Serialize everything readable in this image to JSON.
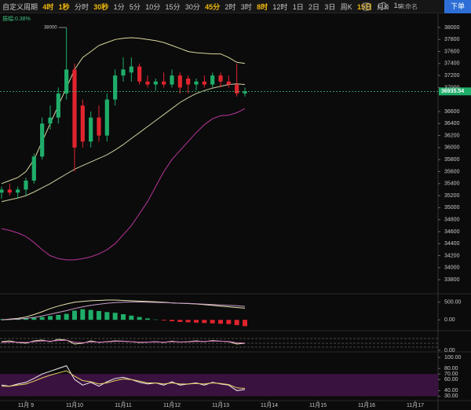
{
  "toolbar": {
    "items": [
      {
        "label": "自定义周期",
        "highlighted": false
      },
      {
        "label": "4时",
        "highlighted": true
      },
      {
        "label": "1秒",
        "highlighted": true
      },
      {
        "label": "分时",
        "highlighted": false
      },
      {
        "label": "30秒",
        "highlighted": true
      },
      {
        "label": "1分",
        "highlighted": false
      },
      {
        "label": "5分",
        "highlighted": false
      },
      {
        "label": "10分",
        "highlighted": false
      },
      {
        "label": "15分",
        "highlighted": false
      },
      {
        "label": "30分",
        "highlighted": false
      },
      {
        "label": "45分",
        "highlighted": true
      },
      {
        "label": "2时",
        "highlighted": false
      },
      {
        "label": "3时",
        "highlighted": false
      },
      {
        "label": "8时",
        "highlighted": true
      },
      {
        "label": "12时",
        "highlighted": false
      },
      {
        "label": "1日",
        "highlighted": false
      },
      {
        "label": "2日",
        "highlighted": false
      },
      {
        "label": "3日",
        "highlighted": false
      },
      {
        "label": "周K",
        "highlighted": false
      },
      {
        "label": "15日",
        "highlighted": true
      },
      {
        "label": "月K",
        "highlighted": false
      },
      {
        "label": "1s",
        "highlighted": false
      }
    ],
    "account": "未命名",
    "order_button": "下单"
  },
  "chart_data": [
    {
      "type": "candlestick",
      "annotation": "振幅:0.38%",
      "x": [
        8.5,
        8.6667,
        8.8333,
        9,
        9.1667,
        9.3333,
        9.5,
        9.6667,
        9.8333,
        10,
        10.1667,
        10.3333,
        10.5,
        10.6667,
        10.8333,
        11,
        11.1667,
        11.3333,
        11.5,
        11.6667,
        11.8333,
        12,
        12.1667,
        12.3333,
        12.5,
        12.6667,
        12.8333,
        13,
        13.1667,
        13.3333,
        13.5
      ],
      "open": [
        35250,
        35300,
        35250,
        35300,
        35450,
        35850,
        36400,
        36500,
        36900,
        37300,
        36700,
        36100,
        36500,
        36200,
        36800,
        37200,
        37250,
        37350,
        37100,
        37050,
        37100,
        37050,
        37200,
        37150,
        37050,
        37100,
        37050,
        37200,
        37100,
        37050,
        36900
      ],
      "high": [
        35350,
        35400,
        35350,
        35500,
        35900,
        36500,
        36700,
        37000,
        38000,
        37400,
        36800,
        36600,
        36700,
        36900,
        37300,
        37500,
        37500,
        37400,
        37200,
        37150,
        37250,
        37300,
        37250,
        37200,
        37150,
        37200,
        37250,
        37250,
        37200,
        37400,
        37000
      ],
      "low": [
        35150,
        35200,
        35150,
        35200,
        35400,
        35800,
        36300,
        36400,
        36800,
        35600,
        36000,
        36000,
        36100,
        36100,
        36700,
        37100,
        37100,
        37050,
        37000,
        36950,
        37000,
        37000,
        36900,
        36900,
        36950,
        37000,
        37000,
        37000,
        37000,
        36850,
        36850
      ],
      "close": [
        35300,
        35250,
        35300,
        35450,
        35850,
        36400,
        36500,
        36900,
        37300,
        36000,
        36100,
        36500,
        36200,
        36800,
        37200,
        37300,
        37350,
        37100,
        37050,
        37100,
        37050,
        37200,
        37000,
        37050,
        37100,
        37050,
        37200,
        37100,
        37050,
        36900,
        36935.54
      ],
      "up_color": "#1fad6a",
      "down_color": "#e0242e",
      "series": [
        {
          "color": "#d9d79c",
          "values": [
            35400,
            35450,
            35500,
            35600,
            35800,
            36100,
            36400,
            36700,
            37000,
            37300,
            37500,
            37600,
            37700,
            37750,
            37800,
            37820,
            37830,
            37820,
            37800,
            37780,
            37750,
            37700,
            37650,
            37600,
            37580,
            37570,
            37560,
            37560,
            37500,
            37420,
            37400
          ]
        },
        {
          "color": "#cfcfa0",
          "values": [
            35100,
            35130,
            35160,
            35200,
            35260,
            35330,
            35400,
            35480,
            35560,
            35640,
            35700,
            35760,
            35820,
            35880,
            35960,
            36050,
            36150,
            36250,
            36350,
            36450,
            36550,
            36650,
            36750,
            36830,
            36900,
            36950,
            36990,
            37020,
            37050,
            37060,
            37050
          ]
        },
        {
          "color": "#b9359b",
          "values": [
            34650,
            34620,
            34580,
            34520,
            34420,
            34300,
            34200,
            34150,
            34130,
            34130,
            34150,
            34180,
            34230,
            34300,
            34400,
            34550,
            34700,
            34900,
            35100,
            35350,
            35600,
            35800,
            35950,
            36100,
            36250,
            36380,
            36480,
            36530,
            36540,
            36580,
            36650
          ]
        }
      ],
      "xlim": [
        8.468,
        17.5
      ],
      "xticks": [
        {
          "value": 9,
          "label": "11月 9"
        },
        {
          "value": 10,
          "label": "11月10"
        },
        {
          "value": 11,
          "label": "11月11"
        },
        {
          "value": 12,
          "label": "11月12"
        },
        {
          "value": 13,
          "label": "11月13"
        },
        {
          "value": 14,
          "label": "11月14"
        },
        {
          "value": 15,
          "label": "11月15"
        },
        {
          "value": 16,
          "label": "11月16"
        },
        {
          "value": 17,
          "label": "11月17"
        }
      ],
      "ylim": [
        33592,
        38222
      ],
      "yticks": [
        33800,
        34000,
        34200,
        34400,
        34600,
        34800,
        35000,
        35200,
        35400,
        35600,
        35800,
        36000,
        36200,
        36400,
        36600,
        37000,
        37200,
        37400,
        37600,
        37800,
        38000
      ]
    },
    {
      "type": "macd",
      "up_color": "#1fad6a",
      "down_color": "#e0242e",
      "values": [
        20,
        25,
        30,
        40,
        60,
        80,
        110,
        140,
        170,
        260,
        300,
        280,
        250,
        220,
        200,
        160,
        120,
        80,
        40,
        10,
        -20,
        -40,
        -60,
        -70,
        -80,
        -90,
        -100,
        -110,
        -120,
        -150,
        -180
      ],
      "series": [
        {
          "color": "#e8e3b0",
          "values": [
            0,
            20,
            40,
            80,
            150,
            230,
            320,
            390,
            450,
            500,
            520,
            540,
            550,
            560,
            560,
            550,
            540,
            530,
            520,
            510,
            500,
            480,
            470,
            460,
            450,
            430,
            410,
            390,
            370,
            350,
            330
          ]
        },
        {
          "color": "#c9a0c9",
          "values": [
            0,
            10,
            20,
            40,
            70,
            110,
            160,
            210,
            260,
            320,
            370,
            410,
            440,
            470,
            490,
            500,
            505,
            505,
            500,
            495,
            490,
            480,
            470,
            465,
            455,
            445,
            435,
            420,
            410,
            400,
            380
          ]
        }
      ],
      "ylim": [
        -240,
        650
      ],
      "yticks": [
        {
          "value": 0,
          "label": "0.00"
        },
        {
          "value": 500,
          "label": "500.00"
        }
      ]
    },
    {
      "type": "line",
      "series": [
        {
          "color": "#e8e3b0",
          "values": [
            55,
            60,
            50,
            45,
            60,
            65,
            55,
            70,
            65,
            40,
            45,
            60,
            50,
            55,
            60,
            58,
            55,
            50,
            52,
            55,
            50,
            58,
            52,
            55,
            60,
            55,
            62,
            58,
            55,
            40,
            45
          ]
        },
        {
          "color": "#d070c0",
          "values": [
            50,
            52,
            52,
            50,
            55,
            60,
            58,
            62,
            64,
            52,
            48,
            54,
            52,
            54,
            57,
            57,
            55,
            52,
            52,
            54,
            52,
            55,
            53,
            54,
            57,
            56,
            59,
            58,
            56,
            48,
            46
          ]
        }
      ],
      "ylim": [
        0,
        100
      ],
      "yticks": [
        {
          "value": 0,
          "label": "0.00"
        }
      ]
    },
    {
      "type": "line",
      "band": [
        30,
        70
      ],
      "band_color": "#3a1240",
      "series": [
        {
          "color": "#f0f0f0",
          "values": [
            50,
            48,
            52,
            55,
            62,
            70,
            75,
            80,
            85,
            60,
            50,
            55,
            48,
            56,
            62,
            64,
            60,
            55,
            52,
            54,
            50,
            56,
            50,
            52,
            54,
            50,
            55,
            52,
            50,
            40,
            42
          ]
        },
        {
          "color": "#e8d060",
          "values": [
            48,
            48,
            50,
            52,
            57,
            63,
            68,
            72,
            76,
            66,
            58,
            56,
            52,
            54,
            58,
            61,
            60,
            57,
            54,
            54,
            52,
            54,
            52,
            52,
            53,
            52,
            54,
            53,
            51,
            45,
            44
          ]
        }
      ],
      "ylim": [
        22,
        110
      ],
      "yticks": [
        {
          "value": 30,
          "label": "30.00"
        },
        {
          "value": 40,
          "label": "40.00"
        },
        {
          "value": 60,
          "label": "60.00"
        },
        {
          "value": 70,
          "label": "70.00"
        },
        {
          "value": 80,
          "label": "80.00"
        },
        {
          "value": 100,
          "label": "100.00"
        }
      ]
    }
  ]
}
